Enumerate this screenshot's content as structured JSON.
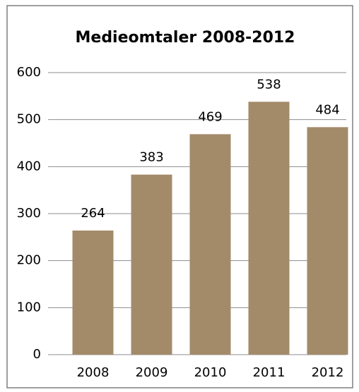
{
  "chart_data": {
    "type": "bar",
    "title": "Medieomtaler 2008-2012",
    "categories": [
      "2008",
      "2009",
      "2010",
      "2011",
      "2012"
    ],
    "values": [
      264,
      383,
      469,
      538,
      484
    ],
    "color": "#a38b6a",
    "ylim": [
      0,
      600
    ],
    "yticks": [
      0,
      100,
      200,
      300,
      400,
      500,
      600
    ],
    "grid": true
  }
}
